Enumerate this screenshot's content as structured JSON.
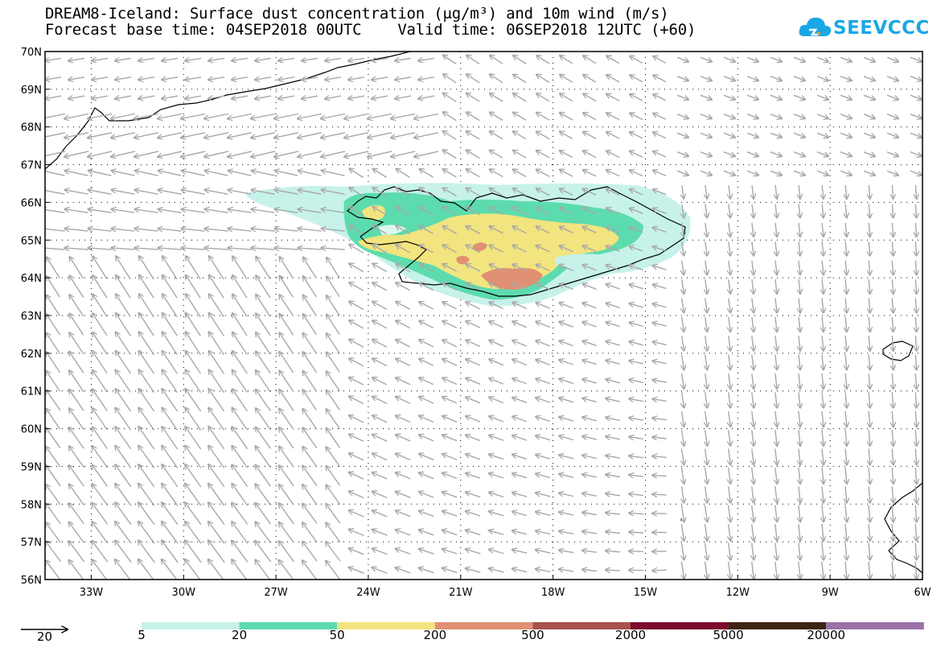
{
  "title": {
    "line1": "DREAM8-Iceland: Surface dust concentration (μg/m³) and 10m wind (m/s)",
    "line2": "Forecast base time: 04SEP2018 00UTC    Valid time: 06SEP2018 12UTC (+60)"
  },
  "logo": {
    "text": "SEEVCCC",
    "icon": "cloud-icon",
    "color": "#1aa7e6"
  },
  "map": {
    "lat_labels": [
      "70N",
      "69N",
      "68N",
      "67N",
      "66N",
      "65N",
      "64N",
      "63N",
      "62N",
      "61N",
      "60N",
      "59N",
      "58N",
      "57N",
      "56N"
    ],
    "lon_labels": [
      "33W",
      "30W",
      "27W",
      "24W",
      "21W",
      "18W",
      "15W",
      "12W",
      "9W",
      "6W"
    ],
    "lat_range": [
      56,
      70
    ],
    "lon_range": [
      -34.5,
      -6
    ],
    "grid": "dotted",
    "wind_arrow_color": "#a8a8a8",
    "coastline_color": "#000000"
  },
  "legend": {
    "reference_vector_label": "20",
    "reference_vector_units": "m/s",
    "levels": [
      "5",
      "20",
      "50",
      "200",
      "500",
      "2000",
      "5000",
      "20000"
    ],
    "colors": [
      "#c6f2ea",
      "#5cdcae",
      "#f2e47e",
      "#e09073",
      "#a8524c",
      "#7c0a2e",
      "#3e2414",
      "#9a72a8"
    ]
  }
}
